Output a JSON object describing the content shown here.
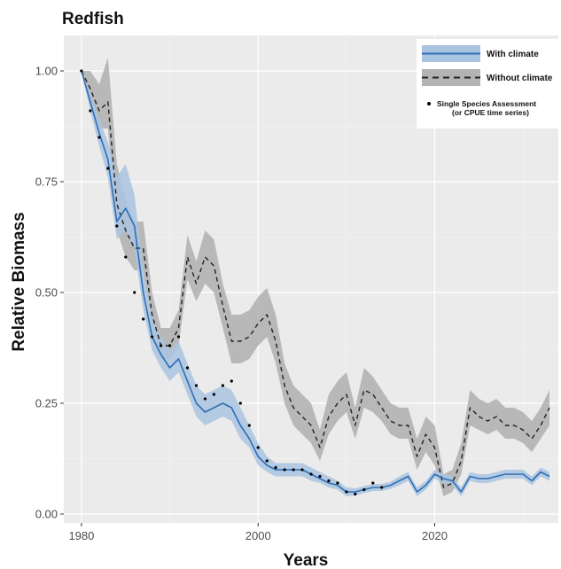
{
  "chart_data": {
    "type": "line",
    "title": "Redfish",
    "xlabel": "Years",
    "ylabel": "Relative Biomass",
    "xlim": [
      1978,
      2034
    ],
    "ylim": [
      -0.02,
      1.08
    ],
    "x_ticks": [
      1980,
      2000,
      2020
    ],
    "y_ticks": [
      0.0,
      0.25,
      0.5,
      0.75,
      1.0
    ],
    "y_tick_labels": [
      "0.00",
      "0.25",
      "0.50",
      "0.75",
      "1.00"
    ],
    "grid": true,
    "legend_position": "top-right",
    "legend": {
      "with_climate": "With climate",
      "without_climate": "Without climate",
      "assessment_line1": "Single Species Assessment",
      "assessment_line2": "(or CPUE time series)"
    },
    "series": [
      {
        "name": "With climate",
        "style": "solid",
        "color": "#2f6eb5",
        "band_color": "#a9c4e0",
        "x": [
          1980,
          1981,
          1982,
          1983,
          1984,
          1985,
          1986,
          1987,
          1988,
          1989,
          1990,
          1991,
          1992,
          1993,
          1994,
          1995,
          1996,
          1997,
          1998,
          1999,
          2000,
          2001,
          2002,
          2003,
          2004,
          2005,
          2006,
          2007,
          2008,
          2009,
          2010,
          2011,
          2012,
          2013,
          2014,
          2015,
          2016,
          2017,
          2018,
          2019,
          2020,
          2021,
          2022,
          2023,
          2024,
          2025,
          2026,
          2027,
          2028,
          2029,
          2030,
          2031,
          2032,
          2033
        ],
        "y": [
          1.0,
          0.93,
          0.86,
          0.8,
          0.66,
          0.69,
          0.65,
          0.5,
          0.4,
          0.36,
          0.33,
          0.35,
          0.3,
          0.25,
          0.23,
          0.24,
          0.25,
          0.24,
          0.2,
          0.17,
          0.13,
          0.11,
          0.1,
          0.1,
          0.1,
          0.1,
          0.09,
          0.08,
          0.07,
          0.065,
          0.05,
          0.05,
          0.055,
          0.06,
          0.06,
          0.065,
          0.075,
          0.085,
          0.05,
          0.065,
          0.09,
          0.08,
          0.075,
          0.05,
          0.085,
          0.08,
          0.08,
          0.085,
          0.09,
          0.09,
          0.09,
          0.075,
          0.095,
          0.085
        ],
        "lower": [
          1.0,
          0.91,
          0.83,
          0.76,
          0.62,
          0.64,
          0.6,
          0.46,
          0.37,
          0.33,
          0.3,
          0.32,
          0.27,
          0.22,
          0.2,
          0.21,
          0.22,
          0.21,
          0.17,
          0.15,
          0.11,
          0.095,
          0.085,
          0.085,
          0.085,
          0.085,
          0.075,
          0.07,
          0.06,
          0.055,
          0.04,
          0.042,
          0.047,
          0.052,
          0.052,
          0.057,
          0.065,
          0.075,
          0.04,
          0.055,
          0.08,
          0.07,
          0.065,
          0.04,
          0.075,
          0.07,
          0.07,
          0.075,
          0.08,
          0.08,
          0.08,
          0.065,
          0.085,
          0.075
        ],
        "upper": [
          1.0,
          0.95,
          0.89,
          0.84,
          0.76,
          0.79,
          0.72,
          0.55,
          0.44,
          0.4,
          0.37,
          0.39,
          0.34,
          0.29,
          0.27,
          0.28,
          0.29,
          0.28,
          0.24,
          0.2,
          0.16,
          0.13,
          0.115,
          0.115,
          0.115,
          0.115,
          0.105,
          0.095,
          0.085,
          0.075,
          0.06,
          0.058,
          0.063,
          0.068,
          0.068,
          0.073,
          0.085,
          0.095,
          0.06,
          0.075,
          0.1,
          0.09,
          0.085,
          0.06,
          0.095,
          0.09,
          0.09,
          0.095,
          0.1,
          0.1,
          0.1,
          0.085,
          0.105,
          0.095
        ]
      },
      {
        "name": "Without climate",
        "style": "dashed",
        "color": "#222222",
        "band_color": "#b3b3b3",
        "x": [
          1980,
          1981,
          1982,
          1983,
          1984,
          1985,
          1986,
          1987,
          1988,
          1989,
          1990,
          1991,
          1992,
          1993,
          1994,
          1995,
          1996,
          1997,
          1998,
          1999,
          2000,
          2001,
          2002,
          2003,
          2004,
          2005,
          2006,
          2007,
          2008,
          2009,
          2010,
          2011,
          2012,
          2013,
          2014,
          2015,
          2016,
          2017,
          2018,
          2019,
          2020,
          2021,
          2022,
          2023,
          2024,
          2025,
          2026,
          2027,
          2028,
          2029,
          2030,
          2031,
          2032,
          2033
        ],
        "y": [
          1.0,
          0.96,
          0.91,
          0.93,
          0.7,
          0.64,
          0.6,
          0.6,
          0.45,
          0.38,
          0.38,
          0.42,
          0.58,
          0.52,
          0.58,
          0.56,
          0.47,
          0.39,
          0.39,
          0.4,
          0.43,
          0.45,
          0.39,
          0.29,
          0.24,
          0.22,
          0.2,
          0.15,
          0.22,
          0.25,
          0.27,
          0.2,
          0.28,
          0.27,
          0.24,
          0.21,
          0.2,
          0.2,
          0.13,
          0.18,
          0.15,
          0.06,
          0.07,
          0.12,
          0.24,
          0.22,
          0.21,
          0.22,
          0.2,
          0.2,
          0.19,
          0.17,
          0.2,
          0.24
        ],
        "lower": [
          1.0,
          0.92,
          0.87,
          0.87,
          0.64,
          0.58,
          0.55,
          0.55,
          0.41,
          0.35,
          0.35,
          0.38,
          0.53,
          0.48,
          0.52,
          0.5,
          0.42,
          0.34,
          0.34,
          0.35,
          0.38,
          0.4,
          0.34,
          0.25,
          0.2,
          0.18,
          0.16,
          0.12,
          0.18,
          0.21,
          0.23,
          0.17,
          0.24,
          0.23,
          0.21,
          0.18,
          0.17,
          0.17,
          0.1,
          0.14,
          0.11,
          0.04,
          0.05,
          0.09,
          0.2,
          0.19,
          0.18,
          0.19,
          0.17,
          0.17,
          0.16,
          0.14,
          0.17,
          0.2
        ],
        "upper": [
          1.0,
          1.0,
          0.97,
          1.03,
          0.79,
          0.71,
          0.66,
          0.66,
          0.5,
          0.42,
          0.42,
          0.46,
          0.63,
          0.57,
          0.64,
          0.62,
          0.52,
          0.45,
          0.45,
          0.46,
          0.49,
          0.51,
          0.45,
          0.34,
          0.29,
          0.27,
          0.25,
          0.19,
          0.27,
          0.3,
          0.32,
          0.24,
          0.33,
          0.31,
          0.28,
          0.25,
          0.24,
          0.24,
          0.17,
          0.22,
          0.2,
          0.09,
          0.1,
          0.16,
          0.28,
          0.26,
          0.25,
          0.26,
          0.24,
          0.24,
          0.23,
          0.21,
          0.24,
          0.28
        ]
      },
      {
        "name": "Single Species Assessment (or CPUE time series)",
        "style": "points",
        "color": "#000000",
        "x": [
          1980,
          1981,
          1982,
          1983,
          1984,
          1985,
          1986,
          1987,
          1988,
          1989,
          1990,
          1991,
          1992,
          1993,
          1994,
          1995,
          1996,
          1997,
          1998,
          1999,
          2000,
          2001,
          2002,
          2003,
          2004,
          2005,
          2006,
          2007,
          2008,
          2009,
          2010,
          2011,
          2012,
          2013,
          2014
        ],
        "y": [
          1.0,
          0.91,
          0.85,
          0.78,
          0.65,
          0.58,
          0.5,
          0.44,
          0.4,
          0.38,
          0.38,
          0.4,
          0.33,
          0.29,
          0.26,
          0.27,
          0.29,
          0.3,
          0.25,
          0.2,
          0.15,
          0.12,
          0.105,
          0.1,
          0.1,
          0.1,
          0.09,
          0.085,
          0.075,
          0.07,
          0.05,
          0.045,
          0.055,
          0.07,
          0.06
        ]
      }
    ]
  }
}
